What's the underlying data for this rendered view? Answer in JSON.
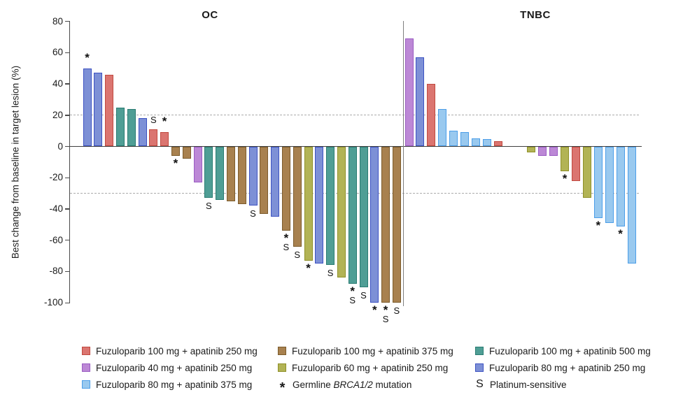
{
  "chart_data": {
    "type": "bar",
    "subtype": "waterfall",
    "ylabel": "Best change from baseline in target lesion (%)",
    "ylim": [
      -100,
      80
    ],
    "yticks": [
      80,
      60,
      40,
      20,
      0,
      -20,
      -40,
      -60,
      -80,
      -100
    ],
    "reference_lines": [
      20,
      -30
    ],
    "grid": "off",
    "legend_position": "bottom",
    "marks_meaning": {
      "*": "Germline BRCA1/2 mutation",
      "S": "Platinum-sensitive"
    },
    "groups": {
      "red": {
        "label": "Fuzuloparib 100 mg + apatinib 250 mg",
        "fill": "#DB7570",
        "border": "#C1493F"
      },
      "brown": {
        "label": "Fuzuloparib 100 mg + apatinib 375 mg",
        "fill": "#A8814F",
        "border": "#7C5B2B"
      },
      "teal": {
        "label": "Fuzuloparib 100 mg + apatinib 500 mg",
        "fill": "#4F9E95",
        "border": "#2A7C72"
      },
      "purple": {
        "label": "Fuzuloparib 40 mg + apatinib 250 mg",
        "fill": "#BC88D6",
        "border": "#9A5CC2"
      },
      "yellow": {
        "label": "Fuzuloparib 60 mg + apatinib 250 mg",
        "fill": "#B2B355",
        "border": "#8F9028"
      },
      "blue": {
        "label": "Fuzuloparib 80 mg + apatinib 250 mg",
        "fill": "#7D90D6",
        "border": "#3D52C2"
      },
      "sky": {
        "label": "Fuzuloparib 80 mg + apatinib 375 mg",
        "fill": "#99C9EF",
        "border": "#4C9EE8"
      }
    },
    "panels": [
      {
        "name": "OC",
        "gap_before_index": -1,
        "gap_slots": 0,
        "bars": [
          {
            "g": "blue",
            "v": 50,
            "m": "*"
          },
          {
            "g": "blue",
            "v": 47,
            "m": ""
          },
          {
            "g": "red",
            "v": 46,
            "m": ""
          },
          {
            "g": "teal",
            "v": 25,
            "m": ""
          },
          {
            "g": "teal",
            "v": 24,
            "m": ""
          },
          {
            "g": "blue",
            "v": 18,
            "m": ""
          },
          {
            "g": "red",
            "v": 11,
            "m": "S"
          },
          {
            "g": "red",
            "v": 9,
            "m": "*"
          },
          {
            "g": "brown",
            "v": -6,
            "m": "*"
          },
          {
            "g": "brown",
            "v": -8,
            "m": ""
          },
          {
            "g": "purple",
            "v": -23,
            "m": ""
          },
          {
            "g": "teal",
            "v": -33,
            "m": "S"
          },
          {
            "g": "teal",
            "v": -34,
            "m": ""
          },
          {
            "g": "brown",
            "v": -35,
            "m": ""
          },
          {
            "g": "brown",
            "v": -37,
            "m": ""
          },
          {
            "g": "blue",
            "v": -38,
            "m": "S"
          },
          {
            "g": "brown",
            "v": -43,
            "m": ""
          },
          {
            "g": "blue",
            "v": -45,
            "m": ""
          },
          {
            "g": "brown",
            "v": -54,
            "m": "*S"
          },
          {
            "g": "brown",
            "v": -64,
            "m": "S"
          },
          {
            "g": "yellow",
            "v": -73,
            "m": "*"
          },
          {
            "g": "blue",
            "v": -75,
            "m": ""
          },
          {
            "g": "teal",
            "v": -76,
            "m": "S"
          },
          {
            "g": "yellow",
            "v": -84,
            "m": ""
          },
          {
            "g": "teal",
            "v": -88,
            "m": "*S"
          },
          {
            "g": "teal",
            "v": -90,
            "m": "S"
          },
          {
            "g": "blue",
            "v": -100,
            "m": "*"
          },
          {
            "g": "brown",
            "v": -100,
            "m": "*S"
          },
          {
            "g": "brown",
            "v": -100,
            "m": "S"
          }
        ]
      },
      {
        "name": "TNBC",
        "gap_before_index": 9,
        "gap_slots": 2,
        "bars": [
          {
            "g": "purple",
            "v": 69,
            "m": ""
          },
          {
            "g": "blue",
            "v": 57,
            "m": ""
          },
          {
            "g": "red",
            "v": 40,
            "m": ""
          },
          {
            "g": "sky",
            "v": 24,
            "m": ""
          },
          {
            "g": "sky",
            "v": 10,
            "m": ""
          },
          {
            "g": "sky",
            "v": 9,
            "m": ""
          },
          {
            "g": "sky",
            "v": 5,
            "m": ""
          },
          {
            "g": "sky",
            "v": 4.5,
            "m": ""
          },
          {
            "g": "red",
            "v": 3.5,
            "m": ""
          },
          {
            "g": "yellow",
            "v": -4,
            "m": ""
          },
          {
            "g": "purple",
            "v": -6,
            "m": ""
          },
          {
            "g": "purple",
            "v": -6,
            "m": ""
          },
          {
            "g": "yellow",
            "v": -16,
            "m": "*"
          },
          {
            "g": "red",
            "v": -22,
            "m": ""
          },
          {
            "g": "yellow",
            "v": -33,
            "m": ""
          },
          {
            "g": "sky",
            "v": -46,
            "m": "*"
          },
          {
            "g": "sky",
            "v": -49,
            "m": ""
          },
          {
            "g": "sky",
            "v": -51,
            "m": "*"
          },
          {
            "g": "sky",
            "v": -75,
            "m": ""
          }
        ]
      }
    ],
    "legend": {
      "columns": [
        [
          {
            "swatch": "red",
            "label": "Fuzuloparib 100 mg + apatinib 250 mg"
          },
          {
            "swatch": "purple",
            "label": "Fuzuloparib 40 mg + apatinib 250 mg"
          },
          {
            "swatch": "sky",
            "label": "Fuzuloparib 80 mg + apatinib 375 mg"
          }
        ],
        [
          {
            "swatch": "brown",
            "label": "Fuzuloparib 100 mg + apatinib 375 mg"
          },
          {
            "swatch": "yellow",
            "label": "Fuzuloparib 60 mg + apatinib 250 mg"
          },
          {
            "symbol": "*",
            "label_prefix": "Germline ",
            "label_italic": "BRCA1/2",
            "label_suffix": " mutation"
          }
        ],
        [
          {
            "swatch": "teal",
            "label": "Fuzuloparib 100 mg + apatinib 500 mg"
          },
          {
            "swatch": "blue",
            "label": "Fuzuloparib 80 mg + apatinib 250 mg"
          },
          {
            "symbol": "S",
            "label": "Platinum-sensitive"
          }
        ]
      ]
    }
  }
}
